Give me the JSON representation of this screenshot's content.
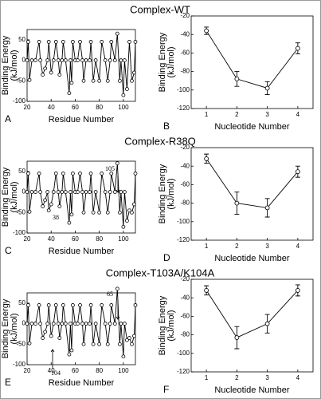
{
  "chart_data": [
    {
      "type": "line",
      "title": "Complex-WT",
      "panel_label": "A",
      "xlabel": "Residue Number",
      "ylabel": [
        "Binding Energy",
        "(kJ/mol)"
      ],
      "x": [
        20,
        21,
        22,
        24,
        27,
        30,
        31,
        33,
        35,
        37,
        38,
        40,
        42,
        44,
        46,
        47,
        49,
        50,
        52,
        55,
        56,
        57,
        58,
        60,
        62,
        64,
        66,
        67,
        69,
        72,
        73,
        75,
        77,
        80,
        82,
        85,
        87,
        89,
        90,
        93,
        95,
        97,
        98,
        100,
        101,
        103,
        105,
        107,
        109,
        110
      ],
      "values": [
        0,
        45,
        -48,
        0,
        0,
        45,
        0,
        -35,
        -20,
        0,
        45,
        -30,
        0,
        45,
        0,
        -35,
        0,
        45,
        0,
        -80,
        0,
        -55,
        45,
        0,
        0,
        45,
        0,
        -50,
        0,
        0,
        45,
        -50,
        0,
        -50,
        45,
        0,
        -50,
        0,
        45,
        0,
        65,
        -50,
        0,
        -85,
        0,
        -70,
        45,
        -50,
        -30,
        45
      ],
      "xlim": [
        20,
        110
      ],
      "xticks": [
        20,
        40,
        60,
        80,
        100
      ],
      "ylim": [
        -100,
        75
      ],
      "yticks": [
        -100,
        -50,
        0,
        50
      ],
      "color": "#000000"
    },
    {
      "type": "line",
      "panel_label": "B",
      "xlabel": "Nucleotide Number",
      "ylabel": [
        "Binding Energy",
        "(kJ/mol)"
      ],
      "x": [
        1,
        2,
        3,
        4
      ],
      "values": [
        -36,
        -88,
        -98,
        -55
      ],
      "errors": [
        4,
        8,
        7,
        6
      ],
      "xlim": [
        0.5,
        4.5
      ],
      "xticks": [
        1,
        2,
        3,
        4
      ],
      "ylim": [
        -120,
        -20
      ],
      "yticks": [
        -120,
        -100,
        -80,
        -60,
        -40,
        -20
      ],
      "color": "#000000"
    },
    {
      "type": "line",
      "title": "Complex-R38Q",
      "panel_label": "C",
      "xlabel": "Residue Number",
      "ylabel": [
        "Binding Energy",
        "(kJ/mol)"
      ],
      "x": [
        20,
        21,
        22,
        24,
        27,
        30,
        31,
        33,
        35,
        37,
        38,
        40,
        42,
        44,
        46,
        47,
        49,
        50,
        52,
        55,
        56,
        57,
        58,
        60,
        62,
        64,
        66,
        67,
        69,
        72,
        73,
        75,
        77,
        80,
        82,
        85,
        87,
        89,
        90,
        93,
        95,
        97,
        98,
        100,
        101,
        103,
        105,
        107,
        109,
        110
      ],
      "values": [
        0,
        45,
        -48,
        0,
        0,
        45,
        0,
        -35,
        -20,
        0,
        -45,
        -30,
        0,
        45,
        0,
        -35,
        0,
        45,
        0,
        -75,
        0,
        -55,
        45,
        0,
        0,
        45,
        0,
        -50,
        0,
        0,
        45,
        -50,
        0,
        -50,
        45,
        0,
        -50,
        0,
        45,
        0,
        70,
        -50,
        0,
        -85,
        0,
        -70,
        -45,
        -50,
        -30,
        45
      ],
      "annotations": [
        "38",
        "105"
      ],
      "xlim": [
        20,
        110
      ],
      "xticks": [
        20,
        40,
        60,
        80,
        100
      ],
      "ylim": [
        -100,
        75
      ],
      "yticks": [
        -100,
        -50,
        0,
        50
      ],
      "color": "#000000"
    },
    {
      "type": "line",
      "panel_label": "D",
      "xlabel": "Nucleotide Number",
      "ylabel": [
        "Binding Energy",
        "(kJ/mol)"
      ],
      "x": [
        1,
        2,
        3,
        4
      ],
      "values": [
        -32,
        -80,
        -85,
        -46
      ],
      "errors": [
        5,
        12,
        10,
        6
      ],
      "xlim": [
        0.5,
        4.5
      ],
      "xticks": [
        1,
        2,
        3,
        4
      ],
      "ylim": [
        -120,
        -20
      ],
      "yticks": [
        -120,
        -100,
        -80,
        -60,
        -40,
        -20
      ],
      "color": "#000000"
    },
    {
      "type": "line",
      "title": "Complex-T103A/K104A",
      "panel_label": "E",
      "xlabel": "Residue Number",
      "ylabel": [
        "Binding Energy",
        "(kJ/mol)"
      ],
      "x": [
        20,
        21,
        22,
        24,
        27,
        30,
        31,
        33,
        35,
        37,
        38,
        40,
        42,
        44,
        46,
        47,
        49,
        50,
        52,
        55,
        56,
        57,
        58,
        60,
        62,
        64,
        66,
        67,
        69,
        72,
        73,
        75,
        77,
        80,
        82,
        85,
        87,
        89,
        90,
        93,
        95,
        97,
        98,
        100,
        101,
        103,
        105,
        107,
        109,
        110
      ],
      "values": [
        0,
        45,
        -48,
        0,
        0,
        45,
        0,
        -35,
        -20,
        0,
        45,
        -30,
        0,
        45,
        0,
        -35,
        0,
        45,
        0,
        -75,
        0,
        -65,
        45,
        0,
        0,
        45,
        0,
        -50,
        0,
        0,
        45,
        -50,
        0,
        -50,
        45,
        0,
        -50,
        0,
        45,
        0,
        85,
        -50,
        0,
        -80,
        0,
        -40,
        -35,
        -50,
        -30,
        45
      ],
      "annotations": [
        "104",
        "65"
      ],
      "xlim": [
        20,
        110
      ],
      "xticks": [
        20,
        40,
        60,
        80,
        100
      ],
      "ylim": [
        -100,
        75
      ],
      "yticks": [
        -100,
        -50,
        0,
        50
      ],
      "color": "#000000"
    },
    {
      "type": "line",
      "panel_label": "F",
      "xlabel": "Nucleotide Number",
      "ylabel": [
        "Binding Energy",
        "(kJ/mol)"
      ],
      "x": [
        1,
        2,
        3,
        4
      ],
      "values": [
        -32,
        -83,
        -68,
        -32
      ],
      "errors": [
        5,
        12,
        10,
        6
      ],
      "xlim": [
        0.5,
        4.5
      ],
      "xticks": [
        1,
        2,
        3,
        4
      ],
      "ylim": [
        -120,
        -20
      ],
      "yticks": [
        -120,
        -100,
        -80,
        -60,
        -40,
        -20
      ],
      "color": "#000000"
    }
  ]
}
